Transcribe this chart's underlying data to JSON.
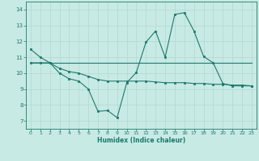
{
  "title": "",
  "xlabel": "Humidex (Indice chaleur)",
  "ylabel": "",
  "bg_color": "#c8eae4",
  "line_color": "#1a7a6e",
  "grid_color": "#b0d8d2",
  "xlim": [
    -0.5,
    23.5
  ],
  "ylim": [
    6.5,
    14.5
  ],
  "yticks": [
    7,
    8,
    9,
    10,
    11,
    12,
    13,
    14
  ],
  "xticks": [
    0,
    1,
    2,
    3,
    4,
    5,
    6,
    7,
    8,
    9,
    10,
    11,
    12,
    13,
    14,
    15,
    16,
    17,
    18,
    19,
    20,
    21,
    22,
    23
  ],
  "line1_x": [
    0,
    1,
    2,
    3,
    4,
    5,
    6,
    7,
    8,
    9,
    10,
    11,
    12,
    13,
    14,
    15,
    16,
    17,
    18,
    19,
    20,
    21,
    22,
    23
  ],
  "line1_y": [
    11.5,
    11.0,
    10.65,
    10.0,
    9.65,
    9.5,
    9.0,
    7.6,
    7.65,
    7.2,
    9.4,
    10.05,
    11.95,
    12.65,
    11.0,
    13.7,
    13.8,
    12.65,
    11.05,
    10.65,
    9.35,
    9.2,
    9.2,
    9.2
  ],
  "line2_x": [
    0,
    23
  ],
  "line2_y": [
    10.65,
    10.65
  ],
  "line3_x": [
    0,
    1,
    2,
    3,
    4,
    5,
    6,
    7,
    8,
    9,
    10,
    11,
    12,
    13,
    14,
    15,
    16,
    17,
    18,
    19,
    20,
    21,
    22,
    23
  ],
  "line3_y": [
    10.65,
    10.65,
    10.65,
    10.3,
    10.1,
    10.0,
    9.8,
    9.6,
    9.5,
    9.5,
    9.5,
    9.5,
    9.5,
    9.45,
    9.4,
    9.4,
    9.4,
    9.35,
    9.35,
    9.3,
    9.3,
    9.25,
    9.25,
    9.2
  ]
}
